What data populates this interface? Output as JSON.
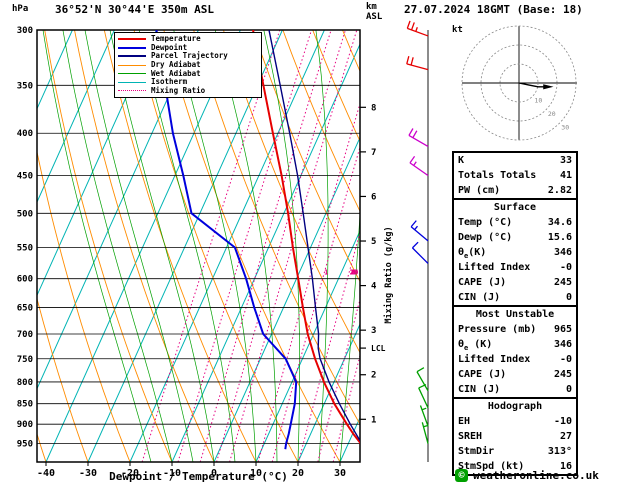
{
  "header": {
    "station": "36°52'N 30°44'E 350m ASL",
    "datetime": "27.07.2024 18GMT (Base: 18)",
    "pressure_unit": "hPa",
    "km_unit_1": "km",
    "km_unit_2": "ASL"
  },
  "labels": {
    "x_axis": "Dewpoint / Temperature (°C)",
    "mixing_ratio_axis": "Mixing Ratio (g/kg)",
    "lcl": "LCL",
    "hodograph_unit": "kt"
  },
  "legend": {
    "items": [
      {
        "label": "Temperature",
        "color": "#e60000",
        "style": "solid",
        "width": 2
      },
      {
        "label": "Dewpoint",
        "color": "#0000dd",
        "style": "solid",
        "width": 2
      },
      {
        "label": "Parcel Trajectory",
        "color": "#000080",
        "style": "solid",
        "width": 2
      },
      {
        "label": "Dry Adiabat",
        "color": "#ff8c00",
        "style": "solid",
        "width": 1.5
      },
      {
        "label": "Wet Adiabat",
        "color": "#00a000",
        "style": "solid",
        "width": 1.5
      },
      {
        "label": "Isotherm",
        "color": "#00b4b4",
        "style": "solid",
        "width": 1.5
      },
      {
        "label": "Mixing Ratio",
        "color": "#e60080",
        "style": "dotted",
        "width": 1.5
      }
    ]
  },
  "table": {
    "sections": [
      {
        "heading": "",
        "rows": [
          [
            "K",
            "33"
          ],
          [
            "Totals Totals",
            "41"
          ],
          [
            "PW (cm)",
            "2.82"
          ]
        ]
      },
      {
        "heading": "Surface",
        "rows": [
          [
            "Temp (°C)",
            "34.6"
          ],
          [
            "Dewp (°C)",
            "15.6"
          ],
          [
            "θe(K)",
            "346"
          ],
          [
            "Lifted Index",
            "-0"
          ],
          [
            "CAPE (J)",
            "245"
          ],
          [
            "CIN (J)",
            "0"
          ]
        ]
      },
      {
        "heading": "Most Unstable",
        "rows": [
          [
            "Pressure (mb)",
            "965"
          ],
          [
            "θe (K)",
            "346"
          ],
          [
            "Lifted Index",
            "-0"
          ],
          [
            "CAPE (J)",
            "245"
          ],
          [
            "CIN (J)",
            "0"
          ]
        ]
      },
      {
        "heading": "Hodograph",
        "rows": [
          [
            "EH",
            "-10"
          ],
          [
            "SREH",
            "27"
          ],
          [
            "StmDir",
            "313°"
          ],
          [
            "StmSpd (kt)",
            "16"
          ]
        ]
      }
    ]
  },
  "footer": {
    "symbol": "©",
    "site": "weatheronline.co.uk",
    "accent": "#00a000"
  },
  "chart_data": {
    "type": "line",
    "title": "Skew-T log-P sounding 36°52'N 30°44'E 350m ASL 27.07.2024 18GMT",
    "xlabel": "Dewpoint / Temperature (°C)",
    "ylabel": "hPa",
    "x_ticks": [
      -40,
      -30,
      -20,
      -10,
      0,
      10,
      20,
      30
    ],
    "xlim": [
      -45,
      35
    ],
    "pressure_ticks": [
      300,
      350,
      400,
      450,
      500,
      550,
      600,
      650,
      700,
      750,
      800,
      850,
      900,
      950
    ],
    "pressure_range": [
      300,
      1000
    ],
    "km_ticks": [
      1,
      2,
      3,
      4,
      5,
      6,
      7,
      8
    ],
    "lcl_pressure": 728,
    "mixing_ratio_lines": [
      1,
      2,
      3,
      4,
      5,
      8,
      10,
      15,
      20,
      25
    ],
    "isotherms": {
      "min": -120,
      "max": 40,
      "step": 10
    },
    "dry_adiabats": {
      "min": -40,
      "max": 100,
      "step": 10
    },
    "wet_adiabats": {
      "min": -15,
      "max": 40,
      "step": 5
    },
    "grid_color": "#000000",
    "series": [
      {
        "name": "Temperature",
        "color": "#e60000",
        "width": 2,
        "points": [
          [
            965,
            34.6
          ],
          [
            950,
            33
          ],
          [
            925,
            30.2
          ],
          [
            900,
            27.6
          ],
          [
            850,
            22.4
          ],
          [
            800,
            17.6
          ],
          [
            750,
            13
          ],
          [
            700,
            8.6
          ],
          [
            650,
            4.6
          ],
          [
            600,
            0.4
          ],
          [
            550,
            -4.2
          ],
          [
            500,
            -9
          ],
          [
            450,
            -14.6
          ],
          [
            400,
            -21.2
          ],
          [
            350,
            -28.6
          ],
          [
            300,
            -37
          ]
        ]
      },
      {
        "name": "Dewpoint",
        "color": "#0000dd",
        "width": 2,
        "points": [
          [
            965,
            15.6
          ],
          [
            950,
            15.2
          ],
          [
            925,
            14.8
          ],
          [
            900,
            14.2
          ],
          [
            850,
            13
          ],
          [
            800,
            11
          ],
          [
            750,
            6
          ],
          [
            700,
            -2
          ],
          [
            650,
            -7
          ],
          [
            600,
            -12
          ],
          [
            550,
            -18
          ],
          [
            500,
            -32
          ],
          [
            450,
            -38
          ],
          [
            400,
            -45
          ],
          [
            350,
            -52
          ],
          [
            300,
            -60
          ]
        ]
      },
      {
        "name": "Parcel Trajectory",
        "color": "#000080",
        "width": 1.4,
        "points": [
          [
            965,
            34.6
          ],
          [
            900,
            28.4
          ],
          [
            850,
            23.6
          ],
          [
            800,
            18.8
          ],
          [
            750,
            14.2
          ],
          [
            728,
            12.6
          ],
          [
            700,
            11.2
          ],
          [
            650,
            7.6
          ],
          [
            600,
            3.8
          ],
          [
            550,
            -0.6
          ],
          [
            500,
            -5.4
          ],
          [
            450,
            -10.8
          ],
          [
            400,
            -17.2
          ],
          [
            350,
            -24.6
          ],
          [
            300,
            -33.2
          ]
        ]
      }
    ],
    "wind_barbs": [
      {
        "pressure": 305,
        "speed": 25,
        "dir": 290,
        "color": "#e60000"
      },
      {
        "pressure": 335,
        "speed": 20,
        "dir": 285,
        "color": "#e60000"
      },
      {
        "pressure": 415,
        "speed": 20,
        "dir": 300,
        "color": "#cc00cc"
      },
      {
        "pressure": 450,
        "speed": 15,
        "dir": 305,
        "color": "#cc00cc"
      },
      {
        "pressure": 540,
        "speed": 15,
        "dir": 310,
        "color": "#0000dd"
      },
      {
        "pressure": 575,
        "speed": 10,
        "dir": 315,
        "color": "#0000dd"
      },
      {
        "pressure": 820,
        "speed": 10,
        "dir": 330,
        "color": "#00a000"
      },
      {
        "pressure": 860,
        "speed": 10,
        "dir": 335,
        "color": "#00a000"
      },
      {
        "pressure": 905,
        "speed": 5,
        "dir": 340,
        "color": "#00a000"
      },
      {
        "pressure": 950,
        "speed": 5,
        "dir": 345,
        "color": "#00a000"
      }
    ],
    "hodograph": {
      "unit": "kt",
      "rings_kt": [
        10,
        20,
        30
      ],
      "trace_uv_kt": [
        [
          0,
          0
        ],
        [
          5,
          -1
        ],
        [
          10,
          -2
        ],
        [
          15,
          -2
        ]
      ],
      "storm_dir_deg": 313,
      "storm_spd_kt": 16
    }
  }
}
